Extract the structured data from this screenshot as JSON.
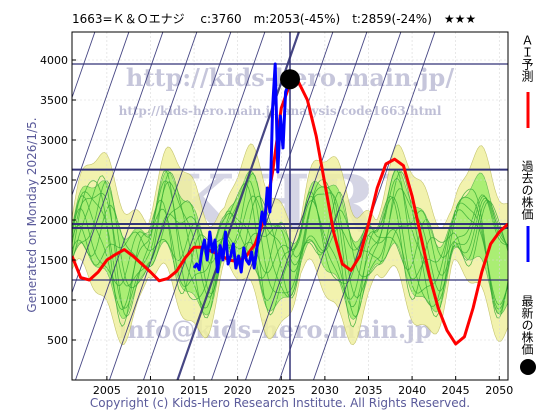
{
  "header": {
    "title": "1663=Ｋ＆Ｏエナジ　 c:3760　m:2053(-45%)　t:2859(-24%)　★★★"
  },
  "side_label": "Generated on Monday 2026/1/5.",
  "footer": "Copyright (c) Kids-Hero Research Institute. All Rights Reserved.",
  "watermarks": {
    "url_top": "http://kids-hero.main.jp/",
    "url_mid": "http://kids-hero.main.jp/analysis/code1663.html",
    "big": "KHRI",
    "email": "info@kids-hero.main.jp"
  },
  "legend": {
    "ai_forecast": "ＡＩ予測",
    "past_price": "過去の株価",
    "latest_price": "最新の株価"
  },
  "colors": {
    "ai_forecast": "#ff0000",
    "past_price": "#0000ff",
    "latest_price": "#000000",
    "band_outer": "#f0f0a0",
    "band_inner": "#99ee66",
    "sim_lines": "#33aa33",
    "levels": "#333377",
    "diag": "#333377"
  },
  "chart_data": {
    "type": "line",
    "title": "1663=Ｋ＆Ｏエナジ　 c:3760　m:2053(-45%)　t:2859(-24%)　★★★",
    "xlim": [
      2001,
      2051
    ],
    "ylim": [
      0,
      4350
    ],
    "xticks": [
      2005,
      2010,
      2015,
      2020,
      2025,
      2030,
      2035,
      2040,
      2045,
      2050
    ],
    "yticks": [
      500,
      1000,
      1500,
      2000,
      2500,
      3000,
      3500,
      4000
    ],
    "grid": true,
    "horizontal_levels": [
      3950,
      2630,
      1950,
      1900,
      1250
    ],
    "vertical_marker_x": 2026,
    "latest_point": {
      "x": 2026,
      "y": 3760
    },
    "series": [
      {
        "name": "ＡＩ予測",
        "x": [
          2001,
          2002,
          2003,
          2004,
          2005,
          2006,
          2007,
          2008,
          2009,
          2010,
          2011,
          2012,
          2013,
          2014,
          2015,
          2016,
          2017,
          2018,
          2019,
          2020,
          2021,
          2022,
          2023,
          2024,
          2025,
          2026,
          2027,
          2028,
          2029,
          2030,
          2031,
          2032,
          2033,
          2034,
          2035,
          2036,
          2037,
          2038,
          2039,
          2040,
          2041,
          2042,
          2043,
          2044,
          2045,
          2046,
          2047,
          2048,
          2049,
          2050,
          2051
        ],
        "values": [
          1550,
          1280,
          1250,
          1350,
          1500,
          1570,
          1630,
          1550,
          1450,
          1350,
          1240,
          1270,
          1360,
          1530,
          1660,
          1660,
          1610,
          1560,
          1500,
          1480,
          1550,
          1700,
          1990,
          2600,
          3400,
          3700,
          3720,
          3500,
          3050,
          2450,
          1850,
          1450,
          1370,
          1550,
          1950,
          2400,
          2700,
          2760,
          2680,
          2300,
          1800,
          1300,
          900,
          620,
          450,
          540,
          900,
          1350,
          1700,
          1850,
          1950
        ]
      },
      {
        "name": "過去の株価",
        "x": [
          2015.0,
          2015.3,
          2015.6,
          2015.9,
          2016.2,
          2016.5,
          2016.8,
          2017.1,
          2017.4,
          2017.7,
          2018.0,
          2018.3,
          2018.6,
          2018.9,
          2019.2,
          2019.5,
          2019.8,
          2020.1,
          2020.4,
          2020.7,
          2021.0,
          2021.3,
          2021.6,
          2021.9,
          2022.2,
          2022.5,
          2022.8,
          2023.1,
          2023.4,
          2023.7,
          2024.0,
          2024.3,
          2024.6,
          2024.9,
          2025.2,
          2025.5,
          2025.8
        ],
        "values": [
          1400,
          1450,
          1380,
          1620,
          1750,
          1500,
          1850,
          1600,
          1750,
          1350,
          1680,
          1500,
          1850,
          1450,
          1550,
          1700,
          1400,
          1550,
          1350,
          1650,
          1500,
          1450,
          1600,
          1400,
          1650,
          1850,
          2100,
          1950,
          2400,
          2100,
          3400,
          3950,
          2600,
          3300,
          2900,
          3600,
          3700
        ]
      }
    ]
  }
}
